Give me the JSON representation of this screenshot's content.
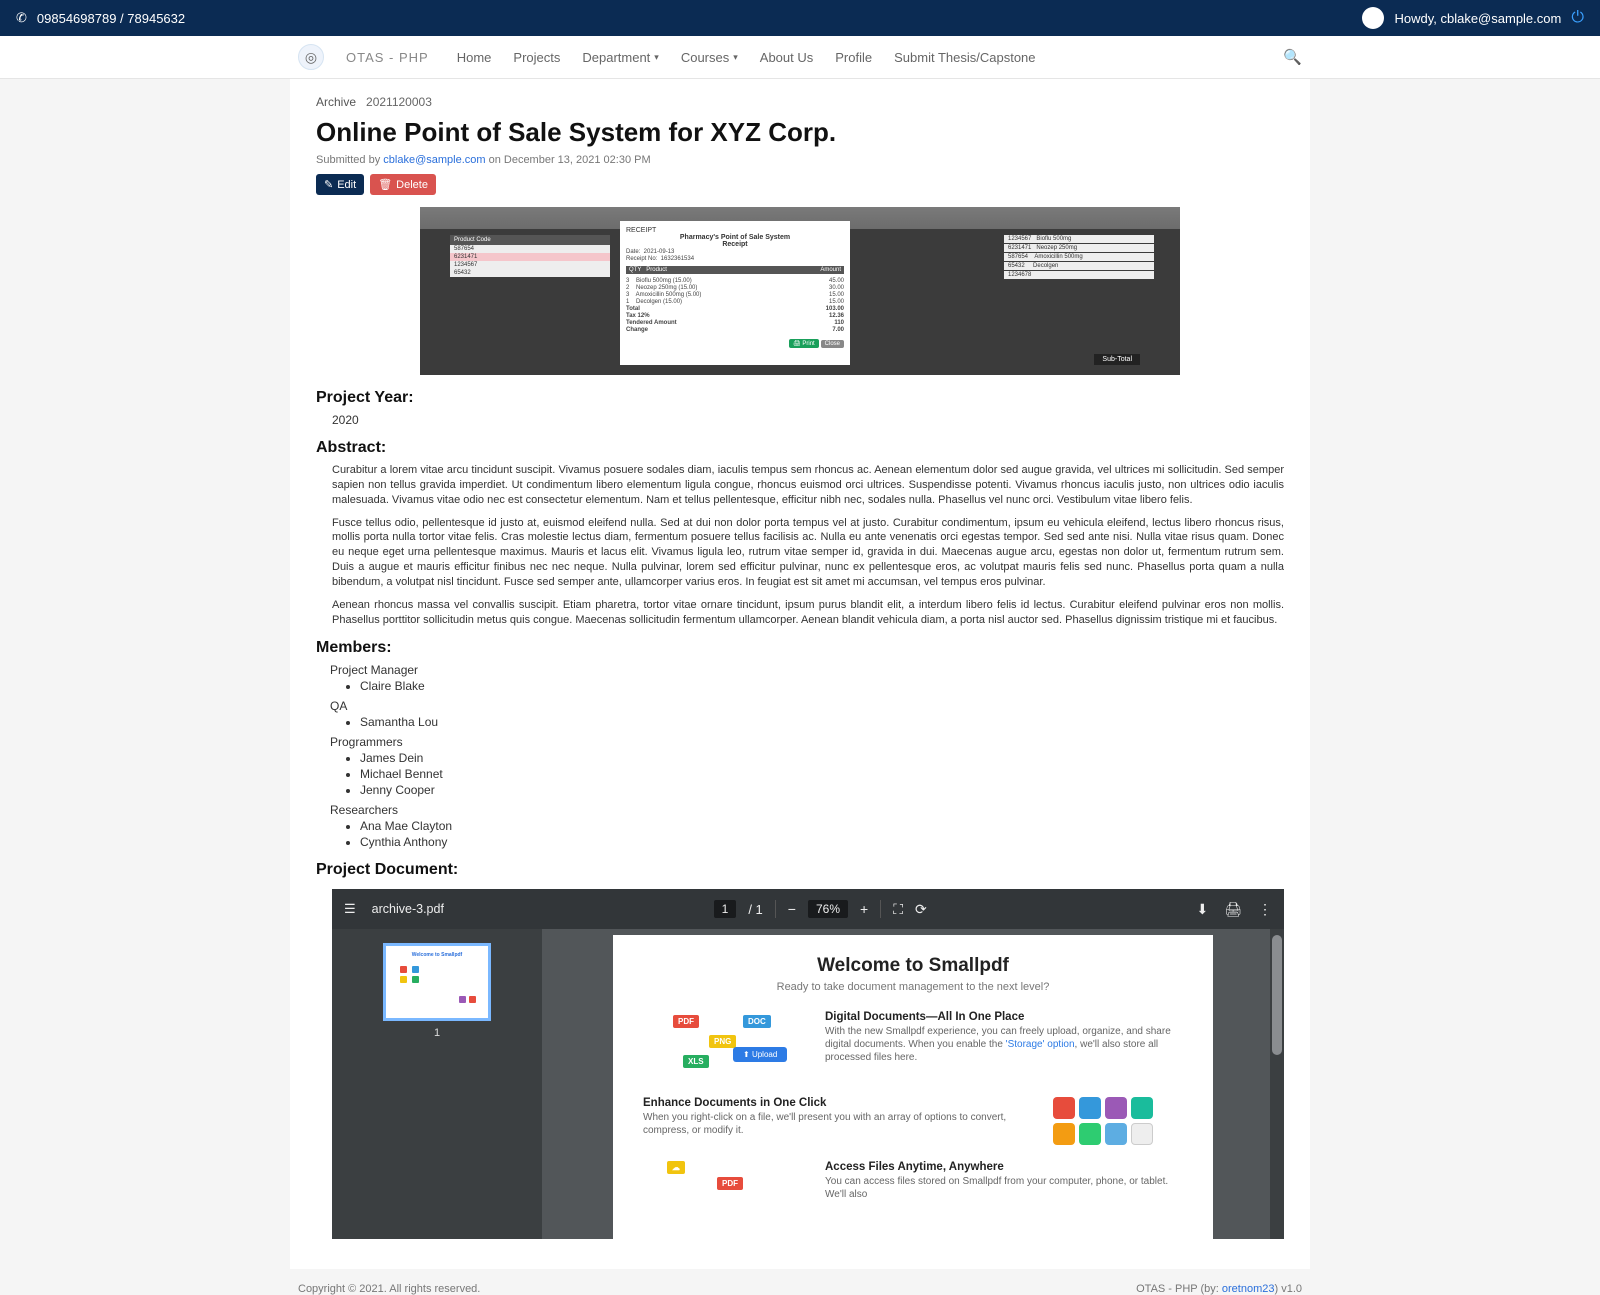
{
  "topbar": {
    "phone": "09854698789 / 78945632",
    "greeting": "Howdy, cblake@sample.com"
  },
  "nav": {
    "brand": "OTAS - PHP",
    "items": [
      "Home",
      "Projects",
      "Department",
      "Courses",
      "About Us",
      "Profile",
      "Submit Thesis/Capstone"
    ]
  },
  "bread": {
    "archive": "Archive",
    "id": "2021120003"
  },
  "title": "Online Point of Sale System for XYZ Corp.",
  "sub": {
    "pre": "Submitted by ",
    "email": "cblake@sample.com",
    "post": " on December 13, 2021 02:30 PM"
  },
  "btn": {
    "edit": "Edit",
    "del": "Delete"
  },
  "projyear": {
    "label": "Project Year:",
    "val": "2020"
  },
  "abstract": {
    "label": "Abstract:",
    "p1": "Curabitur a lorem vitae arcu tincidunt suscipit. Vivamus posuere sodales diam, iaculis tempus sem rhoncus ac. Aenean elementum dolor sed augue gravida, vel ultrices mi sollicitudin. Sed semper sapien non tellus gravida imperdiet. Ut condimentum libero elementum ligula congue, rhoncus euismod orci ultrices. Suspendisse potenti. Vivamus rhoncus iaculis justo, non ultrices odio iaculis malesuada. Vivamus vitae odio nec est consectetur elementum. Nam et tellus pellentesque, efficitur nibh nec, sodales nulla. Phasellus vel nunc orci. Vestibulum vitae libero felis.",
    "p2": "Fusce tellus odio, pellentesque id justo at, euismod eleifend nulla. Sed at dui non dolor porta tempus vel at justo. Curabitur condimentum, ipsum eu vehicula eleifend, lectus libero rhoncus risus, mollis porta nulla tortor vitae felis. Cras molestie lectus diam, fermentum posuere tellus facilisis ac. Nulla eu ante venenatis orci egestas tempor. Sed sed ante nisi. Nulla vitae risus quam. Donec eu neque eget urna pellentesque maximus. Mauris et lacus elit. Vivamus ligula leo, rutrum vitae semper id, gravida in dui. Maecenas augue arcu, egestas non dolor ut, fermentum rutrum sem. Duis a augue et mauris efficitur finibus nec nec neque. Nulla pulvinar, lorem sed efficitur pulvinar, nunc ex pellentesque eros, ac volutpat mauris felis sed nunc. Phasellus porta quam a nulla bibendum, a volutpat nisl tincidunt. Fusce sed semper ante, ullamcorper varius eros. In feugiat est sit amet mi accumsan, vel tempus eros pulvinar.",
    "p3": "Aenean rhoncus massa vel convallis suscipit. Etiam pharetra, tortor vitae ornare tincidunt, ipsum purus blandit elit, a interdum libero felis id lectus. Curabitur eleifend pulvinar eros non mollis. Phasellus porttitor sollicitudin metus quis congue. Maecenas sollicitudin fermentum ullamcorper. Aenean blandit vehicula diam, a porta nisl auctor sed. Phasellus dignissim tristique mi et faucibus."
  },
  "members": {
    "label": "Members:",
    "roles": [
      {
        "role": "Project Manager",
        "people": [
          "Claire Blake"
        ]
      },
      {
        "role": "QA",
        "people": [
          "Samantha Lou"
        ]
      },
      {
        "role": "Programmers",
        "people": [
          "James Dein",
          "Michael Bennet",
          "Jenny Cooper"
        ]
      },
      {
        "role": "Researchers",
        "people": [
          "Ana Mae Clayton",
          "Cynthia Anthony"
        ]
      }
    ]
  },
  "docsect": "Project Document:",
  "pdf": {
    "file": "archive-3.pdf",
    "page": "1",
    "pages": "/ 1",
    "zoom": "76%",
    "doc": {
      "h1": "Welcome to Smallpdf",
      "sub": "Ready to take document management to the next level?",
      "s1h": "Digital Documents—All In One Place",
      "s1": "With the new Smallpdf experience, you can freely upload, organize, and share digital documents. When you enable the ",
      "s1a": "'Storage' option",
      "s1b": ", we'll also store all processed files here.",
      "s2h": "Enhance Documents in One Click",
      "s2": "When you right-click on a file, we'll present you with an array of options to convert, compress, or modify it.",
      "s3h": "Access Files Anytime, Anywhere",
      "s3": "You can access files stored on Smallpdf from your computer, phone, or tablet. We'll also",
      "upl": "Upload"
    }
  },
  "footer": {
    "left": "Copyright © 2021. All rights reserved.",
    "right_pre": "OTAS - PHP (by: ",
    "right_link": "oretnom23",
    "right_post": ") v1.0"
  }
}
